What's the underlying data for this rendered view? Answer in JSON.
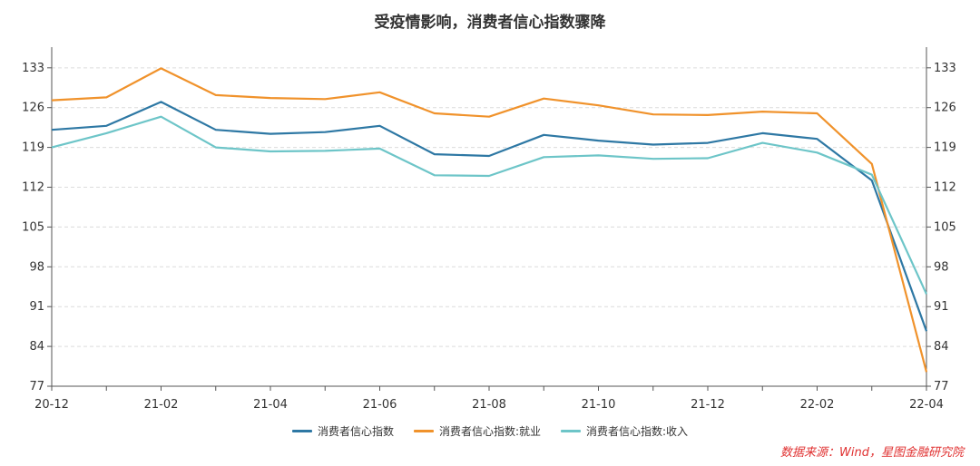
{
  "chart_data": {
    "type": "line",
    "title": "受疫情影响，消费者信心指数骤降",
    "x": [
      "20-12",
      "21-01",
      "21-02",
      "21-03",
      "21-04",
      "21-05",
      "21-06",
      "21-07",
      "21-08",
      "21-09",
      "21-10",
      "21-11",
      "21-12",
      "22-01",
      "22-02",
      "22-03",
      "22-04"
    ],
    "x_tick_labels": [
      "20-12",
      "21-02",
      "21-04",
      "21-06",
      "21-08",
      "21-10",
      "21-12",
      "22-02",
      "22-04"
    ],
    "y_ticks": [
      77,
      84,
      91,
      98,
      105,
      112,
      119,
      126,
      133
    ],
    "ylim": [
      77,
      136
    ],
    "grid": true,
    "legend_position": "bottom",
    "series": [
      {
        "name": "消费者信心指数",
        "color": "#2e78a4",
        "values": [
          122.1,
          122.8,
          127.0,
          122.1,
          121.4,
          121.7,
          122.8,
          117.8,
          117.5,
          121.2,
          120.2,
          119.5,
          119.8,
          121.5,
          120.5,
          113.2,
          86.7
        ]
      },
      {
        "name": "消费者信心指数:就业",
        "color": "#f0922b",
        "values": [
          127.3,
          127.8,
          132.9,
          128.2,
          127.7,
          127.5,
          128.7,
          125.0,
          124.4,
          127.6,
          126.4,
          124.8,
          124.7,
          125.3,
          125.0,
          116.1,
          79.5
        ]
      },
      {
        "name": "消费者信心指数:收入",
        "color": "#6dc5c8",
        "values": [
          119.0,
          121.5,
          124.4,
          119.0,
          118.3,
          118.4,
          118.8,
          114.1,
          114.0,
          117.3,
          117.6,
          117.0,
          117.1,
          119.8,
          118.1,
          114.2,
          93.2
        ]
      }
    ]
  },
  "source_note": "数据来源：Wind，星图金融研究院"
}
